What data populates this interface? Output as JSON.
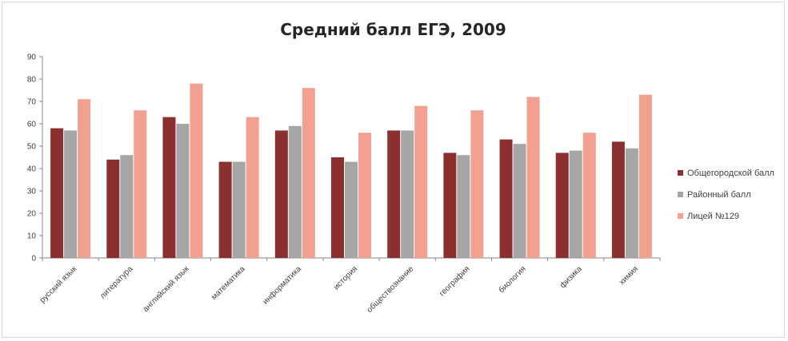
{
  "chart_data": {
    "type": "bar",
    "title": "Средний балл ЕГЭ, 2009",
    "categories": [
      "русский язык",
      "литература",
      "английский язык",
      "математика",
      "информатика",
      "история",
      "обществознание",
      "география",
      "биология",
      "физика",
      "химия"
    ],
    "series": [
      {
        "name": "Общегородской балл",
        "color": "#8b2f2f",
        "values": [
          58,
          44,
          63,
          43,
          57,
          45,
          57,
          47,
          53,
          47,
          52
        ]
      },
      {
        "name": "Районный балл",
        "color": "#a6a6a6",
        "values": [
          57,
          46,
          60,
          43,
          59,
          43,
          57,
          46,
          51,
          48,
          49
        ]
      },
      {
        "name": "Лицей №129",
        "color": "#f2a08f",
        "values": [
          71,
          66,
          78,
          63,
          76,
          56,
          68,
          66,
          72,
          56,
          73
        ]
      }
    ],
    "ylim": [
      0,
      90
    ],
    "yticks": [
      0,
      10,
      20,
      30,
      40,
      50,
      60,
      70,
      80,
      90
    ],
    "legend_position": "right",
    "grid": false
  }
}
